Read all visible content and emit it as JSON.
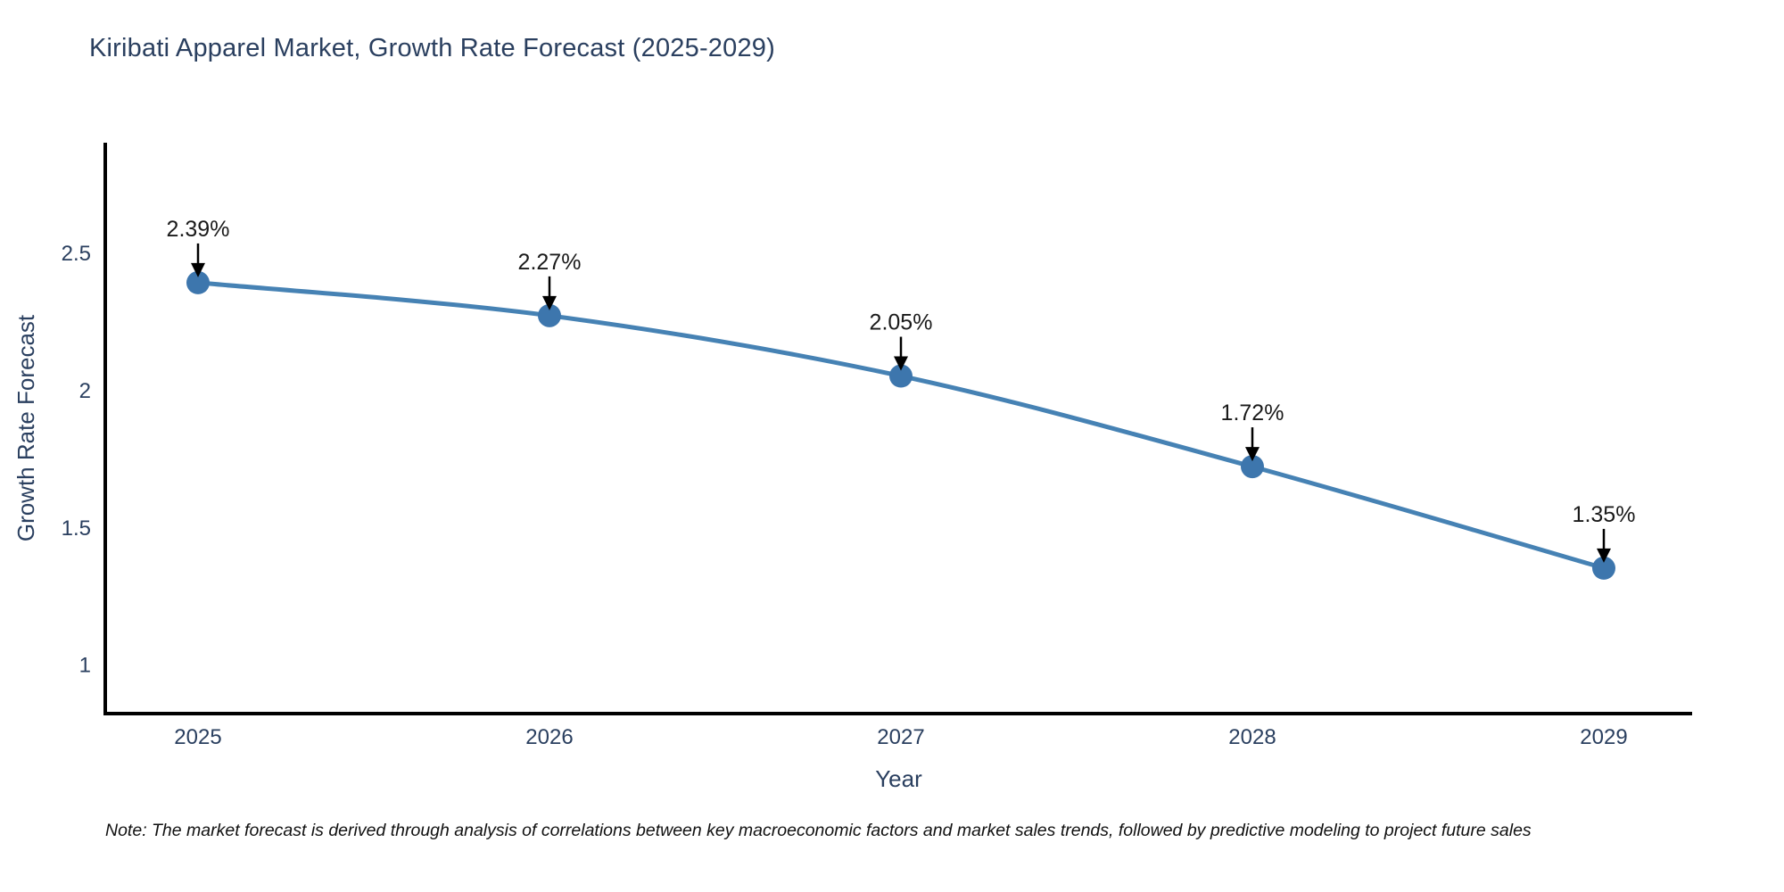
{
  "title": "Kiribati Apparel Market, Growth Rate Forecast (2025-2029)",
  "note": "Note: The market forecast is derived through analysis of correlations between key macroeconomic factors and market sales trends, followed by predictive modeling to project future sales",
  "chart_data": {
    "type": "line",
    "title": "Kiribati Apparel Market, Growth Rate Forecast (2025-2029)",
    "xlabel": "Year",
    "ylabel": "Growth Rate Forecast",
    "categories": [
      "2025",
      "2026",
      "2027",
      "2028",
      "2029"
    ],
    "values": [
      2.39,
      2.27,
      2.05,
      1.72,
      1.35
    ],
    "point_labels": [
      "2.39%",
      "2.27%",
      "2.05%",
      "1.72%",
      "1.35%"
    ],
    "yticks": [
      1,
      1.5,
      2,
      2.5
    ],
    "ylim": [
      0.82,
      2.9
    ],
    "grid": false,
    "legend": false,
    "annotation_style": "black-arrow-above-point",
    "colors": {
      "line": "#4682b4",
      "marker": "#3d76ad",
      "axis": "#000000",
      "tick_text": "#2a3f5f",
      "axis_title_text": "#2a3f5f",
      "title_text": "#2a3f5f",
      "annotation_text": "#1a1a1a",
      "arrow": "#000000",
      "background": "#ffffff"
    }
  }
}
